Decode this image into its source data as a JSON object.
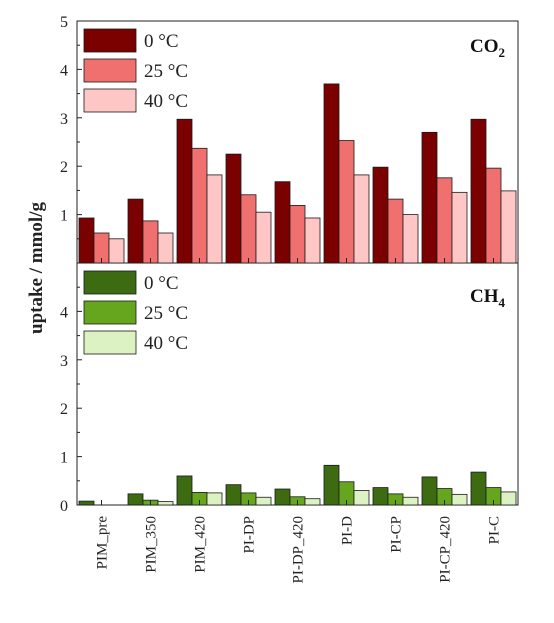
{
  "chart_data": [
    {
      "type": "bar",
      "panel_label": "CO",
      "panel_label_sub": "2",
      "ylabel": "uptake / mmol/g",
      "ylim": [
        0,
        5
      ],
      "yticks": [
        "1",
        "2",
        "3",
        "4",
        "5"
      ],
      "categories": [
        "PIM_pre",
        "PIM_350",
        "PIM_420",
        "PI-DP",
        "PI-DP_420",
        "PI-D",
        "PI-CP",
        "PI-CP_420",
        "PI-C"
      ],
      "series": [
        {
          "name": "0 °C",
          "color": "#7b0000",
          "values": [
            0.93,
            1.32,
            2.97,
            2.25,
            1.68,
            3.7,
            1.98,
            2.7,
            2.97
          ]
        },
        {
          "name": "25 °C",
          "color": "#f07070",
          "values": [
            0.62,
            0.87,
            2.37,
            1.41,
            1.19,
            2.53,
            1.32,
            1.76,
            1.96
          ]
        },
        {
          "name": "40 °C",
          "color": "#ffc6c6",
          "values": [
            0.5,
            0.62,
            1.82,
            1.05,
            0.93,
            1.82,
            1.0,
            1.46,
            1.49
          ]
        }
      ],
      "legend": "top-left"
    },
    {
      "type": "bar",
      "panel_label": "CH",
      "panel_label_sub": "4",
      "ylim": [
        0,
        5
      ],
      "yticks": [
        "0",
        "1",
        "2",
        "3",
        "4"
      ],
      "categories": [
        "PIM_pre",
        "PIM_350",
        "PIM_420",
        "PI-DP",
        "PI-DP_420",
        "PI-D",
        "PI-CP",
        "PI-CP_420",
        "PI-C"
      ],
      "series": [
        {
          "name": "0 °C",
          "color": "#3d6b12",
          "values": [
            0.08,
            0.23,
            0.6,
            0.42,
            0.33,
            0.82,
            0.36,
            0.58,
            0.68
          ]
        },
        {
          "name": "25 °C",
          "color": "#66a61e",
          "values": [
            0.0,
            0.1,
            0.26,
            0.25,
            0.17,
            0.48,
            0.23,
            0.34,
            0.36
          ]
        },
        {
          "name": "40 °C",
          "color": "#ddf2c2",
          "values": [
            0.0,
            0.07,
            0.25,
            0.16,
            0.13,
            0.3,
            0.16,
            0.22,
            0.27
          ]
        }
      ],
      "legend": "top-left"
    }
  ]
}
